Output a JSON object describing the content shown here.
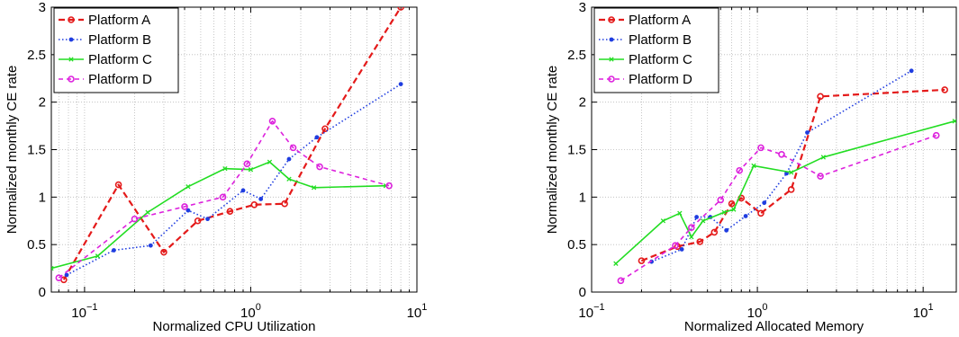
{
  "chart_data": [
    {
      "type": "line",
      "xlabel": "Normalized CPU Utilization",
      "ylabel": "Normalized monthly CE rate",
      "xscale": "log",
      "xlim": [
        0.0631,
        10
      ],
      "ylim": [
        0,
        3
      ],
      "xticks": [
        {
          "value": 0.1,
          "base": "10",
          "exp": "−1"
        },
        {
          "value": 1,
          "base": "10",
          "exp": "0"
        },
        {
          "value": 10,
          "base": "10",
          "exp": "1"
        }
      ],
      "yticks": [
        0,
        0.5,
        1,
        1.5,
        2,
        2.5,
        3
      ],
      "ytick_labels": [
        "0",
        "0.5",
        "1",
        "1.5",
        "2",
        "2.5",
        "3"
      ],
      "grid": true,
      "legend_position": "top-left",
      "series": [
        {
          "name": "Platform A",
          "color": "#e41a1a",
          "dash": "7,4",
          "marker": "circle",
          "x": [
            0.075,
            0.16,
            0.3,
            0.48,
            0.75,
            1.05,
            1.6,
            2.8,
            8.0
          ],
          "y": [
            0.13,
            1.13,
            0.42,
            0.75,
            0.85,
            0.92,
            0.93,
            1.72,
            3.0
          ]
        },
        {
          "name": "Platform B",
          "color": "#1f3de0",
          "dash": "1.5,2.5",
          "marker": "dot",
          "x": [
            0.078,
            0.15,
            0.25,
            0.42,
            0.55,
            0.9,
            1.15,
            1.7,
            2.5,
            8.0
          ],
          "y": [
            0.18,
            0.44,
            0.49,
            0.86,
            0.77,
            1.07,
            0.98,
            1.4,
            1.63,
            2.19
          ]
        },
        {
          "name": "Platform C",
          "color": "#22dd22",
          "dash": "",
          "marker": "x",
          "x": [
            0.0631,
            0.12,
            0.24,
            0.42,
            0.7,
            1.0,
            1.3,
            1.7,
            2.4,
            6.5
          ],
          "y": [
            0.25,
            0.38,
            0.84,
            1.11,
            1.3,
            1.29,
            1.37,
            1.19,
            1.1,
            1.12
          ]
        },
        {
          "name": "Platform D",
          "color": "#dd22dd",
          "dash": "5,4",
          "marker": "circle",
          "x": [
            0.07,
            0.2,
            0.4,
            0.68,
            0.95,
            1.35,
            1.8,
            2.6,
            6.8
          ],
          "y": [
            0.15,
            0.77,
            0.9,
            1.0,
            1.35,
            1.8,
            1.52,
            1.32,
            1.12
          ]
        }
      ]
    },
    {
      "type": "line",
      "xlabel": "Normalized Allocated Memory",
      "ylabel": "Normalized monthly CE rate",
      "xscale": "log",
      "xlim": [
        0.1,
        15.85
      ],
      "ylim": [
        0,
        3
      ],
      "xticks": [
        {
          "value": 0.1,
          "base": "10",
          "exp": "−1"
        },
        {
          "value": 1,
          "base": "10",
          "exp": "0"
        },
        {
          "value": 10,
          "base": "10",
          "exp": "1"
        }
      ],
      "yticks": [
        0,
        0.5,
        1,
        1.5,
        2,
        2.5,
        3
      ],
      "ytick_labels": [
        "0",
        "0.5",
        "1",
        "1.5",
        "2",
        "2.5",
        "3"
      ],
      "grid": true,
      "legend_position": "top-left",
      "series": [
        {
          "name": "Platform A",
          "color": "#e41a1a",
          "dash": "7,4",
          "marker": "circle",
          "x": [
            0.2,
            0.33,
            0.45,
            0.55,
            0.7,
            0.8,
            1.05,
            1.6,
            2.4,
            13.5
          ],
          "y": [
            0.33,
            0.48,
            0.53,
            0.63,
            0.93,
            0.99,
            0.83,
            1.08,
            2.06,
            2.13
          ]
        },
        {
          "name": "Platform B",
          "color": "#1f3de0",
          "dash": "1.5,2.5",
          "marker": "dot",
          "x": [
            0.23,
            0.35,
            0.43,
            0.52,
            0.65,
            0.85,
            1.1,
            1.5,
            2.0,
            8.5
          ],
          "y": [
            0.32,
            0.45,
            0.79,
            0.79,
            0.65,
            0.8,
            0.94,
            1.25,
            1.68,
            2.33
          ]
        },
        {
          "name": "Platform C",
          "color": "#22dd22",
          "dash": "",
          "marker": "x",
          "x": [
            0.14,
            0.27,
            0.34,
            0.4,
            0.47,
            0.63,
            0.72,
            0.95,
            1.6,
            2.5,
            15.5
          ],
          "y": [
            0.3,
            0.75,
            0.83,
            0.58,
            0.75,
            0.84,
            0.87,
            1.33,
            1.26,
            1.42,
            1.8
          ]
        },
        {
          "name": "Platform D",
          "color": "#dd22dd",
          "dash": "5,4",
          "marker": "circle",
          "x": [
            0.15,
            0.32,
            0.4,
            0.6,
            0.78,
            1.05,
            1.4,
            2.4,
            12.0
          ],
          "y": [
            0.12,
            0.49,
            0.68,
            0.97,
            1.28,
            1.52,
            1.45,
            1.22,
            1.65
          ]
        }
      ]
    }
  ]
}
